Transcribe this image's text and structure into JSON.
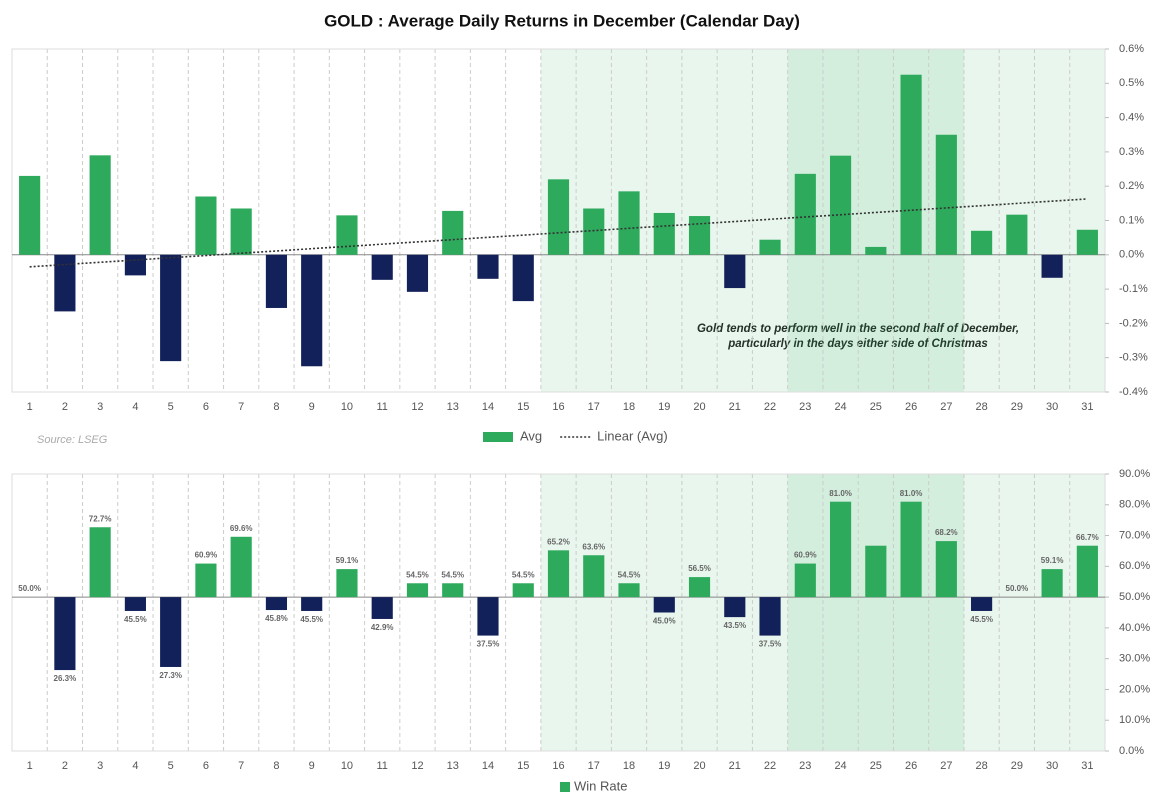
{
  "chart_data": [
    {
      "type": "bar",
      "title": "GOLD : Average Daily Returns in December (Calendar Day)",
      "source": "Source: LSEG",
      "annotation": [
        "Gold tends to perform well in the second half of December,",
        "particularly in the days either side of Christmas"
      ],
      "categories": [
        "1",
        "2",
        "3",
        "4",
        "5",
        "6",
        "7",
        "8",
        "9",
        "10",
        "11",
        "12",
        "13",
        "14",
        "15",
        "16",
        "17",
        "18",
        "19",
        "20",
        "21",
        "22",
        "23",
        "24",
        "25",
        "26",
        "27",
        "28",
        "29",
        "30",
        "31"
      ],
      "series": [
        {
          "name": "Avg",
          "color": "#2eaa5c",
          "negative_color": "#13215a",
          "values": [
            0.23,
            -0.165,
            0.29,
            -0.06,
            -0.31,
            0.17,
            0.135,
            -0.155,
            -0.325,
            0.115,
            -0.073,
            -0.108,
            0.128,
            -0.07,
            -0.135,
            0.22,
            0.135,
            0.185,
            0.122,
            0.113,
            -0.097,
            0.044,
            0.236,
            0.289,
            0.023,
            0.525,
            0.35,
            0.07,
            0.117,
            -0.067,
            0.073
          ]
        }
      ],
      "trendline": {
        "name": "Linear (Avg)",
        "x": [
          1,
          31
        ],
        "values": [
          -0.035,
          0.163
        ],
        "color": "#333333"
      },
      "bands": [
        {
          "start": "16",
          "end": "31",
          "color": "#2eaa5c"
        },
        {
          "start": "23",
          "end": "27",
          "color": "#2eaa5c"
        }
      ],
      "ylim": [
        -0.4,
        0.6
      ],
      "yticks": [
        {
          "value": -0.4,
          "label": "-0.4%"
        },
        {
          "value": -0.3,
          "label": "-0.3%"
        },
        {
          "value": -0.2,
          "label": "-0.2%"
        },
        {
          "value": -0.1,
          "label": "-0.1%"
        },
        {
          "value": 0,
          "label": "0.0%"
        },
        {
          "value": 0.1,
          "label": "0.1%"
        },
        {
          "value": 0.2,
          "label": "0.2%"
        },
        {
          "value": 0.3,
          "label": "0.3%"
        },
        {
          "value": 0.4,
          "label": "0.4%"
        },
        {
          "value": 0.5,
          "label": "0.5%"
        },
        {
          "value": 0.6,
          "label": "0.6%"
        }
      ]
    },
    {
      "type": "bar",
      "categories": [
        "1",
        "2",
        "3",
        "4",
        "5",
        "6",
        "7",
        "8",
        "9",
        "10",
        "11",
        "12",
        "13",
        "14",
        "15",
        "16",
        "17",
        "18",
        "19",
        "20",
        "21",
        "22",
        "23",
        "24",
        "25",
        "26",
        "27",
        "28",
        "29",
        "30",
        "31"
      ],
      "series": [
        {
          "name": "Win Rate",
          "color": "#2eaa5c",
          "negative_color": "#13215a",
          "values": [
            50.0,
            26.3,
            72.7,
            45.5,
            27.3,
            60.9,
            69.6,
            45.8,
            45.5,
            59.1,
            42.9,
            54.5,
            54.5,
            37.5,
            54.5,
            65.2,
            63.6,
            54.5,
            45.0,
            56.5,
            43.5,
            37.5,
            60.9,
            81.0,
            66.7,
            81.0,
            68.2,
            45.5,
            50.0,
            59.1,
            66.7
          ],
          "value_labels": [
            "50.0%",
            "26.3%",
            "72.7%",
            "45.5%",
            "27.3%",
            "60.9%",
            "69.6%",
            "45.8%",
            "45.5%",
            "59.1%",
            "42.9%",
            "54.5%",
            "54.5%",
            "37.5%",
            "54.5%",
            "65.2%",
            "63.6%",
            "54.5%",
            "45.0%",
            "56.5%",
            "43.5%",
            "37.5%",
            "60.9%",
            "81.0%",
            null,
            "81.0%",
            "68.2%",
            "45.5%",
            "50.0%",
            "59.1%",
            "66.7%"
          ]
        }
      ],
      "baseline": 50,
      "bands": [
        {
          "start": "16",
          "end": "31",
          "color": "#2eaa5c"
        },
        {
          "start": "23",
          "end": "27",
          "color": "#2eaa5c"
        }
      ],
      "ylim": [
        0,
        90
      ],
      "yticks": [
        {
          "value": 0,
          "label": "0.0%"
        },
        {
          "value": 10,
          "label": "10.0%"
        },
        {
          "value": 20,
          "label": "20.0%"
        },
        {
          "value": 30,
          "label": "30.0%"
        },
        {
          "value": 40,
          "label": "40.0%"
        },
        {
          "value": 50,
          "label": "50.0%"
        },
        {
          "value": 60,
          "label": "60.0%"
        },
        {
          "value": 70,
          "label": "70.0%"
        },
        {
          "value": 80,
          "label": "80.0%"
        },
        {
          "value": 90,
          "label": "90.0%"
        }
      ]
    }
  ]
}
